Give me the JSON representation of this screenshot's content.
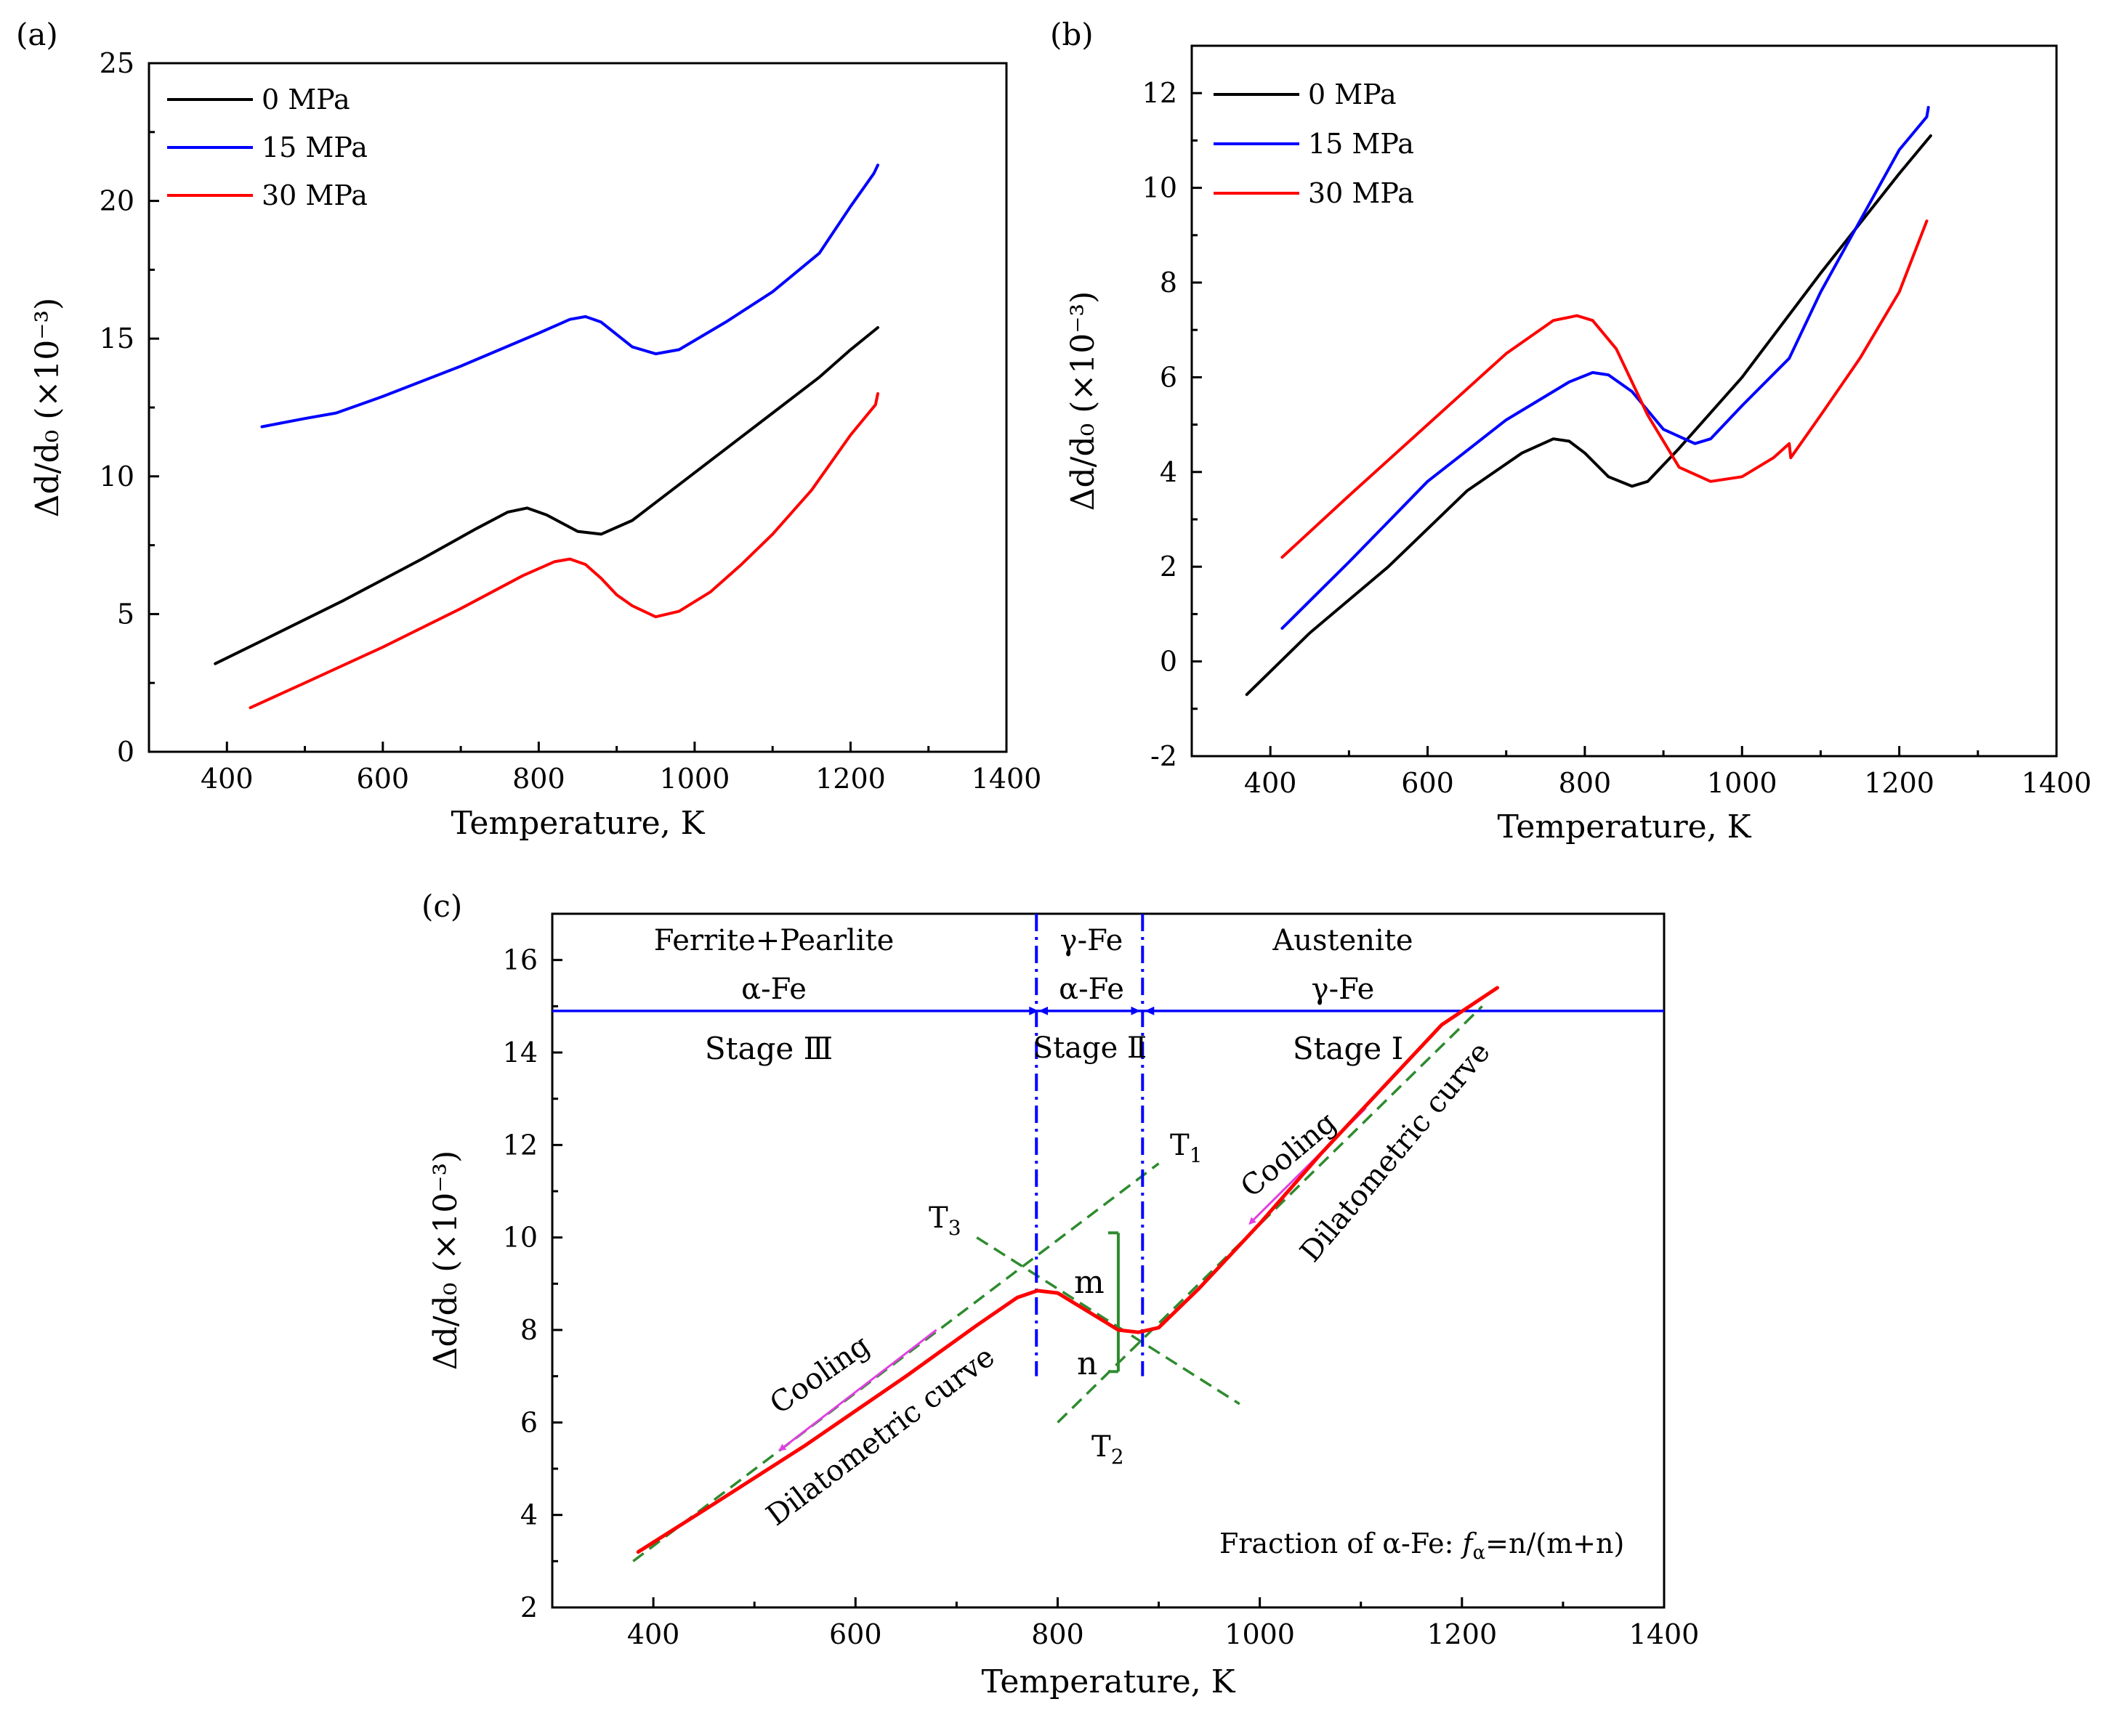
{
  "chart_data": [
    {
      "type": "line",
      "panel_label": "(a)",
      "xlabel": "Temperature, K",
      "ylabel": "Δd/d₀ (×10⁻³)",
      "xlim": [
        300,
        1400
      ],
      "ylim": [
        0,
        25
      ],
      "xticks": [
        400,
        600,
        800,
        1000,
        1200,
        1400
      ],
      "yticks": [
        0,
        5,
        10,
        15,
        20,
        25
      ],
      "legend_position": "top-left",
      "series": [
        {
          "name": "0 MPa",
          "color": "#000000",
          "x": [
            385,
            450,
            550,
            650,
            720,
            760,
            785,
            810,
            850,
            880,
            920,
            980,
            1040,
            1100,
            1160,
            1200,
            1235
          ],
          "y": [
            3.2,
            4.1,
            5.5,
            7.0,
            8.1,
            8.7,
            8.85,
            8.6,
            8.0,
            7.9,
            8.4,
            9.7,
            11.0,
            12.3,
            13.6,
            14.6,
            15.4
          ]
        },
        {
          "name": "15 MPa",
          "color": "#0000ff",
          "x": [
            445,
            500,
            540,
            600,
            700,
            800,
            840,
            860,
            880,
            920,
            950,
            980,
            1040,
            1100,
            1160,
            1200,
            1230,
            1235
          ],
          "y": [
            11.8,
            12.1,
            12.3,
            12.9,
            14.0,
            15.2,
            15.7,
            15.8,
            15.6,
            14.7,
            14.45,
            14.6,
            15.6,
            16.7,
            18.1,
            19.8,
            21.0,
            21.3
          ]
        },
        {
          "name": "30 MPa",
          "color": "#ff0000",
          "x": [
            430,
            500,
            600,
            700,
            780,
            820,
            840,
            860,
            880,
            900,
            920,
            950,
            980,
            1020,
            1060,
            1100,
            1150,
            1200,
            1232,
            1235
          ],
          "y": [
            1.6,
            2.5,
            3.8,
            5.2,
            6.4,
            6.9,
            7.0,
            6.8,
            6.3,
            5.7,
            5.3,
            4.9,
            5.1,
            5.8,
            6.8,
            7.9,
            9.5,
            11.5,
            12.6,
            13.0
          ]
        }
      ]
    },
    {
      "type": "line",
      "panel_label": "(b)",
      "xlabel": "Temperature, K",
      "ylabel": "Δd/d₀ (×10⁻³)",
      "xlim": [
        300,
        1400
      ],
      "ylim": [
        -2,
        13
      ],
      "xticks": [
        400,
        600,
        800,
        1000,
        1200,
        1400
      ],
      "yticks": [
        -2,
        0,
        2,
        4,
        6,
        8,
        10,
        12
      ],
      "legend_position": "top-left",
      "series": [
        {
          "name": "0 MPa",
          "color": "#000000",
          "x": [
            370,
            450,
            550,
            650,
            720,
            760,
            780,
            800,
            830,
            860,
            880,
            920,
            1000,
            1100,
            1200,
            1240
          ],
          "y": [
            -0.7,
            0.6,
            2.0,
            3.6,
            4.4,
            4.7,
            4.65,
            4.4,
            3.9,
            3.7,
            3.8,
            4.5,
            6.0,
            8.2,
            10.3,
            11.1
          ]
        },
        {
          "name": "15 MPa",
          "color": "#0000ff",
          "x": [
            415,
            500,
            600,
            700,
            780,
            810,
            830,
            860,
            900,
            940,
            960,
            1000,
            1060,
            1100,
            1150,
            1200,
            1235,
            1237
          ],
          "y": [
            0.7,
            2.1,
            3.8,
            5.1,
            5.9,
            6.1,
            6.05,
            5.7,
            4.9,
            4.6,
            4.7,
            5.4,
            6.4,
            7.8,
            9.3,
            10.8,
            11.5,
            11.7
          ]
        },
        {
          "name": "30 MPa",
          "color": "#ff0000",
          "x": [
            415,
            500,
            600,
            700,
            760,
            790,
            810,
            840,
            880,
            920,
            960,
            1000,
            1040,
            1060,
            1062,
            1100,
            1150,
            1200,
            1235
          ],
          "y": [
            2.2,
            3.5,
            5.0,
            6.5,
            7.2,
            7.3,
            7.2,
            6.6,
            5.2,
            4.1,
            3.8,
            3.9,
            4.3,
            4.6,
            4.3,
            5.2,
            6.4,
            7.8,
            9.3
          ]
        }
      ]
    },
    {
      "type": "line",
      "panel_label": "(c)",
      "xlabel": "Temperature, K",
      "ylabel": "Δd/d₀ (×10⁻³)",
      "xlim": [
        300,
        1400
      ],
      "ylim": [
        2,
        17
      ],
      "xticks": [
        400,
        600,
        800,
        1000,
        1200,
        1400
      ],
      "yticks": [
        2,
        4,
        6,
        8,
        10,
        12,
        14,
        16
      ],
      "series": [
        {
          "name": "Dilatometric curve",
          "color": "#ff0000",
          "x": [
            385,
            450,
            550,
            650,
            720,
            760,
            780,
            800,
            830,
            860,
            880,
            900,
            940,
            1000,
            1060,
            1120,
            1180,
            1235
          ],
          "y": [
            3.2,
            4.1,
            5.5,
            7.0,
            8.1,
            8.7,
            8.85,
            8.8,
            8.4,
            8.0,
            7.95,
            8.05,
            8.9,
            10.3,
            11.8,
            13.2,
            14.6,
            15.4
          ]
        }
      ],
      "tangent_lines": [
        {
          "name": "upper",
          "color": "#2e8b2e",
          "x": [
            380,
            900
          ],
          "y": [
            3.0,
            11.6
          ]
        },
        {
          "name": "lower",
          "color": "#2e8b2e",
          "x": [
            800,
            1220
          ],
          "y": [
            6.0,
            15.0
          ]
        },
        {
          "name": "T3-line",
          "color": "#2e8b2e",
          "x": [
            720,
            980
          ],
          "y": [
            10.0,
            6.4
          ]
        }
      ],
      "vertical_markers": [
        {
          "name": "T3",
          "x": 779
        },
        {
          "name": "T1",
          "x": 884
        }
      ],
      "lever_line": {
        "x": 860,
        "y_top": 10.1,
        "y_mid": 8.0,
        "y_bottom": 7.1
      },
      "stage_line_y": 14.9,
      "regions": {
        "left_title": "Ferrite+Pearlite",
        "left_phase": "α-Fe",
        "left_stage": "Stage Ⅲ",
        "mid_title": "γ-Fe",
        "mid_phase": "α-Fe",
        "mid_stage": "Stage Ⅱ",
        "right_title": "Austenite",
        "right_phase": "γ-Fe",
        "right_stage": "Stage Ⅰ"
      },
      "annotations": {
        "T1": "T",
        "T1_sub": "1",
        "T2": "T",
        "T2_sub": "2",
        "T3": "T",
        "T3_sub": "3",
        "m": "m",
        "n": "n",
        "cooling_left": "Cooling",
        "cooling_right": "Cooling",
        "dilato_left": "Dilatometric curve",
        "dilato_right": "Dilatometric curve",
        "fraction_prefix": "Fraction of α-Fe: ",
        "fraction_f": "f",
        "fraction_sub": "α",
        "fraction_suffix": "=n/(m+n)"
      }
    }
  ],
  "colors": {
    "axis": "#000000",
    "stage_line": "#0000ff",
    "tangent": "#2e8b2e",
    "cooling_arrow": "#e040e0",
    "curve": "#ff0000"
  }
}
